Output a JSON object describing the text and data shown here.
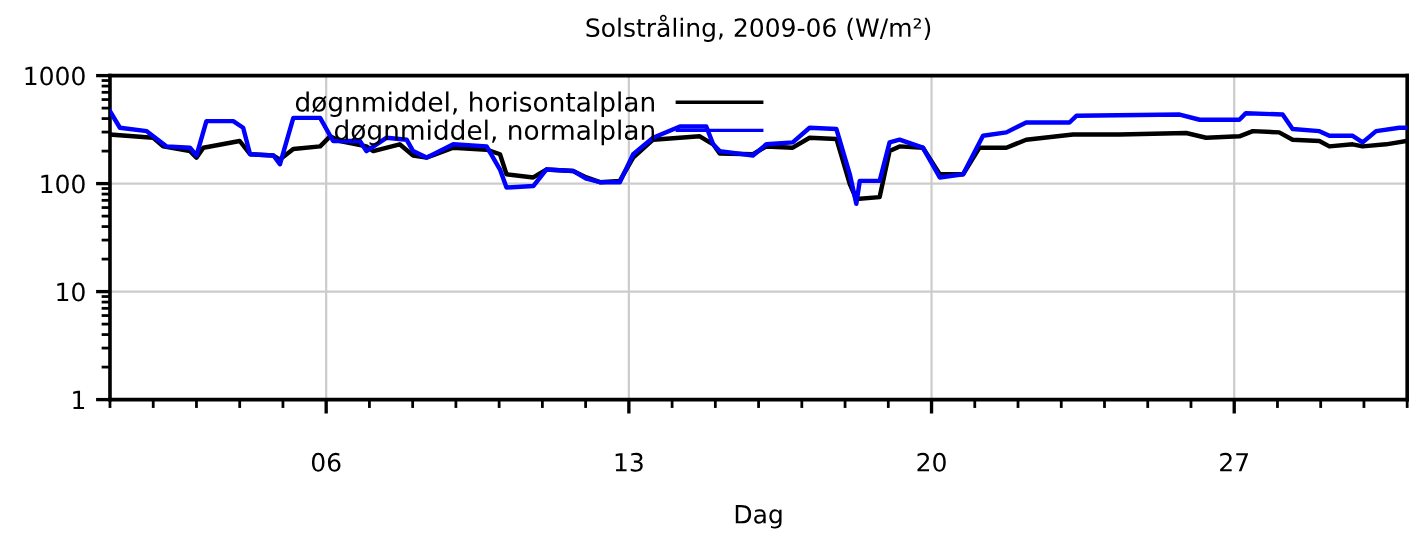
{
  "chart_data": {
    "type": "line",
    "title": "Solstråling, 2009-06 (W/m²)",
    "xlabel": "Dag",
    "xlim": [
      1,
      31
    ],
    "xticks": [
      {
        "value": 6,
        "label": "06"
      },
      {
        "value": 13,
        "label": "13"
      },
      {
        "value": 20,
        "label": "20"
      },
      {
        "value": 27,
        "label": "27"
      }
    ],
    "ylim": [
      1,
      1000
    ],
    "yticks": [
      1,
      10,
      100,
      1000
    ],
    "log": true,
    "grid": true,
    "legend": "top left",
    "line_style": "solid",
    "marker": "none",
    "series": [
      {
        "name": "døgnmiddel, horisontalplan",
        "color": "#000000",
        "x": [
          1.0,
          2.0,
          2.23,
          2.85,
          3.0,
          3.16,
          4.0,
          4.24,
          4.78,
          4.93,
          5.24,
          5.86,
          6.09,
          6.32,
          6.93,
          7.09,
          7.7,
          8.01,
          8.32,
          8.94,
          9.71,
          10.02,
          10.17,
          10.79,
          11.09,
          11.71,
          12.02,
          12.33,
          12.79,
          13.1,
          13.56,
          14.64,
          14.95,
          15.1,
          15.87,
          16.18,
          16.79,
          17.18,
          17.8,
          18.11,
          18.26,
          18.8,
          19.03,
          19.26,
          19.8,
          20.19,
          20.73,
          21.11,
          21.73,
          22.19,
          23.27,
          24.35,
          25.89,
          26.35,
          27.12,
          27.43,
          28.04,
          28.35,
          28.97,
          29.2,
          29.74,
          29.97,
          30.51,
          30.97
        ],
        "values": [
          285,
          266,
          221,
          200,
          174,
          215,
          248,
          187,
          182,
          167,
          209,
          221,
          274,
          248,
          221,
          200,
          231,
          182,
          174,
          215,
          206,
          187,
          122,
          114,
          135,
          131,
          114,
          103,
          106,
          174,
          255,
          274,
          231,
          190,
          187,
          221,
          215,
          266,
          259,
          99,
          72,
          75,
          200,
          221,
          215,
          122,
          122,
          215,
          215,
          255,
          285,
          285,
          294,
          266,
          274,
          306,
          298,
          255,
          248,
          221,
          231,
          221,
          231,
          248
        ]
      },
      {
        "name": "døgnmiddel, normalplan",
        "color": "#0000ff",
        "x": [
          1.0,
          1.23,
          1.85,
          2.31,
          2.85,
          3.0,
          3.23,
          3.85,
          4.08,
          4.24,
          4.78,
          4.93,
          5.24,
          5.86,
          6.16,
          6.78,
          6.93,
          7.4,
          7.86,
          8.01,
          8.32,
          8.94,
          9.71,
          10.02,
          10.17,
          10.79,
          11.09,
          11.71,
          12.02,
          12.33,
          12.79,
          13.1,
          13.56,
          14.18,
          14.79,
          14.95,
          15.1,
          15.87,
          16.18,
          16.79,
          17.18,
          17.8,
          18.11,
          18.26,
          18.34,
          18.8,
          19.03,
          19.26,
          19.8,
          20.19,
          20.73,
          21.19,
          21.73,
          22.19,
          23.19,
          23.35,
          25.74,
          26.2,
          27.12,
          27.27,
          28.12,
          28.35,
          28.97,
          29.2,
          29.74,
          29.97,
          30.28,
          30.82,
          30.97
        ],
        "values": [
          468,
          329,
          306,
          221,
          215,
          182,
          379,
          379,
          329,
          187,
          182,
          151,
          406,
          406,
          248,
          248,
          200,
          266,
          255,
          200,
          174,
          231,
          221,
          135,
          92,
          95,
          135,
          131,
          111,
          103,
          103,
          187,
          266,
          338,
          338,
          231,
          200,
          182,
          231,
          241,
          329,
          320,
          122,
          65,
          106,
          106,
          241,
          255,
          215,
          114,
          122,
          277,
          298,
          368,
          368,
          424,
          436,
          390,
          390,
          449,
          436,
          320,
          306,
          277,
          277,
          241,
          306,
          329,
          329
        ]
      }
    ]
  }
}
